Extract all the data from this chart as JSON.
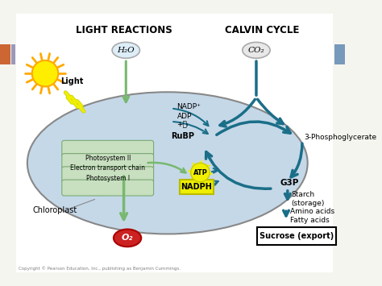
{
  "bg_color": "#f5f5f0",
  "light_reactions_label": "LIGHT REACTIONS",
  "calvin_cycle_label": "CALVIN CYCLE",
  "chloroplast_label": "Chloroplast",
  "light_label": "Light",
  "h2o_label": "H₂O",
  "co2_label": "CO₂",
  "o2_label": "O₂",
  "rubp_label": "RuBP",
  "g3p_label": "G3P",
  "three_pg_label": "3-Phosphoglycerate",
  "nadp_label": "NADP⁺",
  "adp_label": "ADP",
  "adp_pi_label": "+Ⓙᵢ",
  "atp_label": "ATP",
  "nadph_label": "NADPH",
  "photosystem_label": "Photosystem II\nElectron transport chain\nPhotosystem I",
  "starch_label": "Starch\n(storage)",
  "amino_label": "Amino acids\nFatty acids",
  "sucrose_label": "Sucrose (export)",
  "copyright": "Copyright © Pearson Education, Inc., publishing as Benjamin Cummings.",
  "chloroplast_fill": "#c5d8e8",
  "chloroplast_edge": "#888888",
  "photosystem_fill": "#c8dfc0",
  "photosystem_edge": "#7aaa72",
  "arrow_green": "#78b870",
  "arrow_teal": "#1a6e88",
  "sun_yellow": "#ffee00",
  "sun_orange": "#ffaa00",
  "lightning_yellow": "#eeee00",
  "lightning_outline": "#cccc00",
  "o2_red": "#cc2222",
  "atp_yellow": "#f0f000",
  "nadph_yellow": "#eeee00",
  "h2o_circle_fill": "#ddeef8",
  "h2o_circle_edge": "#aaaaaa",
  "co2_circle_fill": "#e8e8e8",
  "co2_circle_edge": "#aaaaaa",
  "sidebar_left_orange": "#cc6633",
  "sidebar_right_blue": "#7799bb",
  "sidebar_left_blue": "#9999bb"
}
